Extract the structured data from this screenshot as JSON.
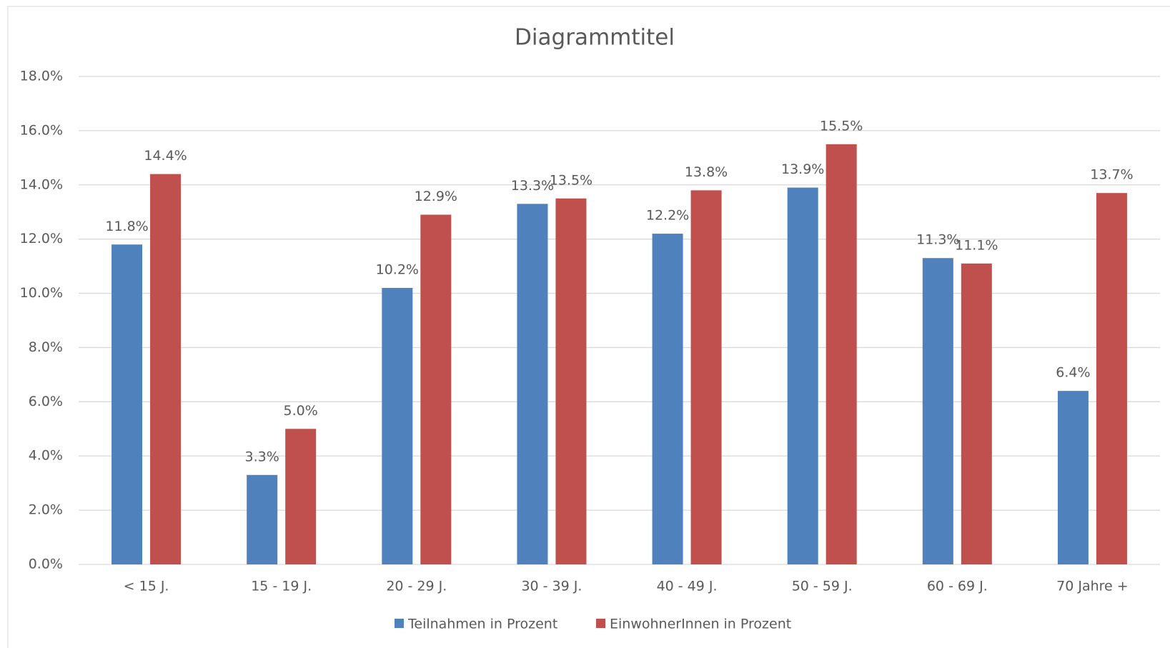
{
  "chart_data": {
    "type": "bar",
    "title": "Diagrammtitel",
    "categories": [
      "< 15 J.",
      "15 - 19 J.",
      "20 - 29 J.",
      "30 - 39 J.",
      "40 - 49 J.",
      "50 - 59 J.",
      "60 - 69 J.",
      "70 Jahre +"
    ],
    "series": [
      {
        "name": "Teilnahmen in Prozent",
        "color": "#4f81bd",
        "values": [
          11.8,
          3.3,
          10.2,
          13.3,
          12.2,
          13.9,
          11.3,
          6.4
        ],
        "value_labels": [
          "11.8%",
          "3.3%",
          "10.2%",
          "13.3%",
          "12.2%",
          "13.9%",
          "11.3%",
          "6.4%"
        ]
      },
      {
        "name": "EinwohnerInnen in Prozent",
        "color": "#c0504d",
        "values": [
          14.4,
          5.0,
          12.9,
          13.5,
          13.8,
          15.5,
          11.1,
          13.7
        ],
        "value_labels": [
          "14.4%",
          "5.0%",
          "12.9%",
          "13.5%",
          "13.8%",
          "15.5%",
          "11.1%",
          "13.7%"
        ]
      }
    ],
    "ylim": [
      0,
      18
    ],
    "yticks": [
      {
        "value": 0,
        "label": "0.0%"
      },
      {
        "value": 2,
        "label": "2.0%"
      },
      {
        "value": 4,
        "label": "4.0%"
      },
      {
        "value": 6,
        "label": "6.0%"
      },
      {
        "value": 8,
        "label": "8.0%"
      },
      {
        "value": 10,
        "label": "10.0%"
      },
      {
        "value": 12,
        "label": "12.0%"
      },
      {
        "value": 14,
        "label": "14.0%"
      },
      {
        "value": 16,
        "label": "16.0%"
      },
      {
        "value": 18,
        "label": "18.0%"
      }
    ],
    "grid": true,
    "legend": "bottom"
  }
}
